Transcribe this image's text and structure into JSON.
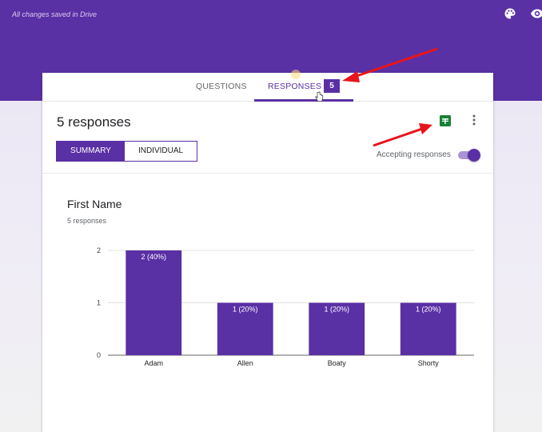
{
  "header": {
    "save_status": "All changes saved in Drive",
    "icons": [
      "palette-icon",
      "eye-icon"
    ],
    "bg_color": "#5a30a5"
  },
  "tabs": {
    "questions": "QUESTIONS",
    "responses": "RESPONSES",
    "response_count": "5",
    "active": "responses"
  },
  "responses": {
    "title": "5 responses",
    "view_summary": "SUMMARY",
    "view_individual": "INDIVIDUAL",
    "active_view": "summary",
    "accepting_label": "Accepting responses",
    "accepting": true
  },
  "question": {
    "title": "First Name",
    "count_label": "5 responses"
  },
  "chart_data": {
    "type": "bar",
    "categories": [
      "Adam",
      "Allen",
      "Boaty",
      "Shorty"
    ],
    "values": [
      2,
      1,
      1,
      1
    ],
    "data_labels": [
      "2 (40%)",
      "1 (20%)",
      "1 (20%)",
      "1 (20%)"
    ],
    "yticks": [
      "0",
      "1",
      "2"
    ],
    "ylim": [
      0,
      2
    ],
    "bar_color": "#5a30a5",
    "grid": true
  },
  "colors": {
    "accent": "#5a30a5",
    "sheets_green": "#188038",
    "annotation_arrow": "#e8141b"
  }
}
